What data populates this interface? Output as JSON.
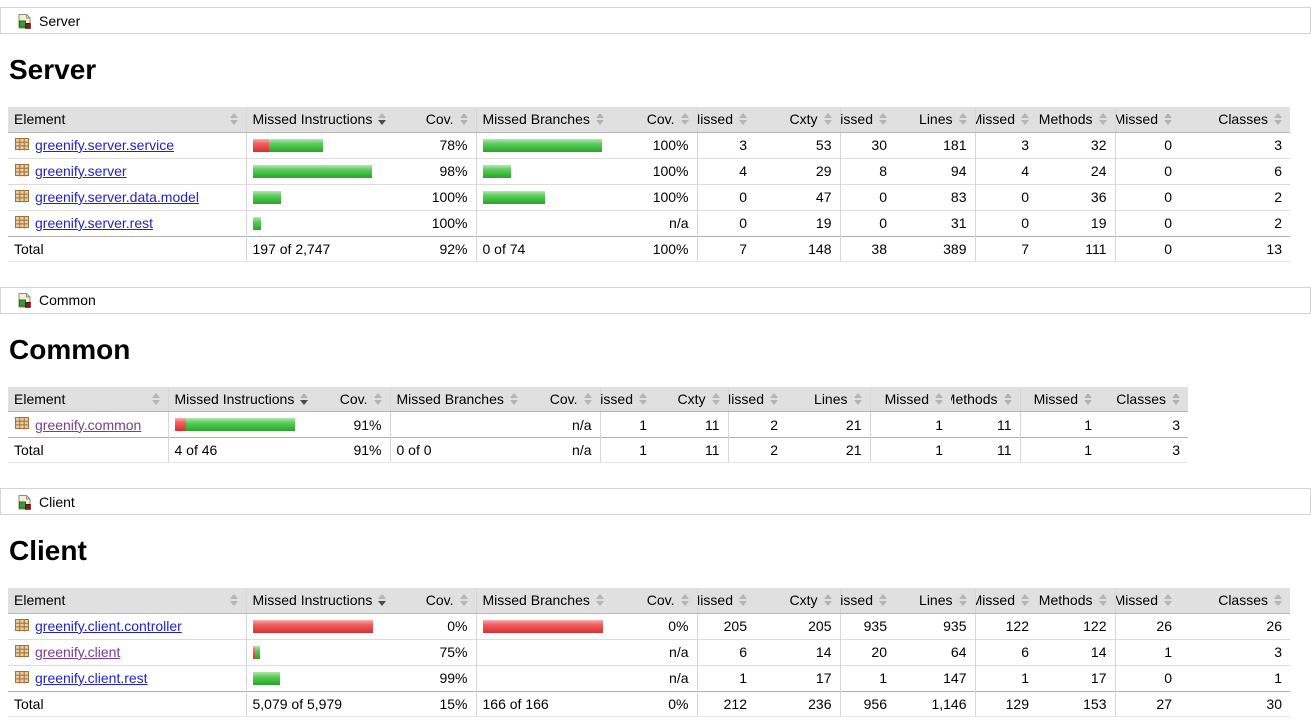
{
  "columns": [
    "Element",
    "Missed Instructions",
    "Cov.",
    "Missed Branches",
    "Cov.",
    "Missed",
    "Cxty",
    "Missed",
    "Lines",
    "Missed",
    "Methods",
    "Missed",
    "Classes"
  ],
  "sort": {
    "column": "Missed Instructions",
    "column_index": 1,
    "direction": "desc"
  },
  "colors": {
    "bar_green": "#3fbf3f",
    "bar_red": "#ea4848",
    "link": "#2222cc",
    "visited_link": "#7a3b96",
    "header_bg": "#e0e0e0"
  },
  "icons": {
    "breadcrumb": "report-group-icon",
    "element": "package-icon",
    "sort": "sort-arrows-icon"
  },
  "sections": [
    {
      "id": "server",
      "breadcrumb": "Server",
      "title": "Server",
      "rows": [
        {
          "element": "greenify.server.service",
          "visited": false,
          "instr_bar": {
            "red": 16,
            "green": 54
          },
          "cov_instr": "78%",
          "branch_bar": {
            "red": 0,
            "green": 119
          },
          "cov_branch": "100%",
          "missed_cxty": "3",
          "cxty": "53",
          "missed_lines": "30",
          "lines": "181",
          "missed_methods": "3",
          "methods": "32",
          "missed_classes": "0",
          "classes": "3"
        },
        {
          "element": "greenify.server",
          "visited": false,
          "instr_bar": {
            "red": 0,
            "green": 119
          },
          "cov_instr": "98%",
          "branch_bar": {
            "red": 0,
            "green": 28
          },
          "cov_branch": "100%",
          "missed_cxty": "4",
          "cxty": "29",
          "missed_lines": "8",
          "lines": "94",
          "missed_methods": "4",
          "methods": "24",
          "missed_classes": "0",
          "classes": "6"
        },
        {
          "element": "greenify.server.data.model",
          "visited": false,
          "instr_bar": {
            "red": 0,
            "green": 28
          },
          "cov_instr": "100%",
          "branch_bar": {
            "red": 0,
            "green": 62
          },
          "cov_branch": "100%",
          "missed_cxty": "0",
          "cxty": "47",
          "missed_lines": "0",
          "lines": "83",
          "missed_methods": "0",
          "methods": "36",
          "missed_classes": "0",
          "classes": "2"
        },
        {
          "element": "greenify.server.rest",
          "visited": false,
          "instr_bar": {
            "red": 0,
            "green": 8
          },
          "cov_instr": "100%",
          "branch_bar": {
            "red": 0,
            "green": 0
          },
          "cov_branch": "n/a",
          "missed_cxty": "0",
          "cxty": "19",
          "missed_lines": "0",
          "lines": "31",
          "missed_methods": "0",
          "methods": "19",
          "missed_classes": "0",
          "classes": "2"
        }
      ],
      "total": {
        "label": "Total",
        "instr": "197 of 2,747",
        "cov_instr": "92%",
        "branch": "0 of 74",
        "cov_branch": "100%",
        "missed_cxty": "7",
        "cxty": "148",
        "missed_lines": "38",
        "lines": "389",
        "missed_methods": "7",
        "methods": "111",
        "missed_classes": "0",
        "classes": "13"
      }
    },
    {
      "id": "common",
      "breadcrumb": "Common",
      "title": "Common",
      "rows": [
        {
          "element": "greenify.common",
          "visited": true,
          "instr_bar": {
            "red": 11,
            "green": 109
          },
          "cov_instr": "91%",
          "branch_bar": {
            "red": 0,
            "green": 0
          },
          "cov_branch": "n/a",
          "missed_cxty": "1",
          "cxty": "11",
          "missed_lines": "2",
          "lines": "21",
          "missed_methods": "1",
          "methods": "11",
          "missed_classes": "1",
          "classes": "3"
        }
      ],
      "total": {
        "label": "Total",
        "instr": "4 of 46",
        "cov_instr": "91%",
        "branch": "0 of 0",
        "cov_branch": "n/a",
        "missed_cxty": "1",
        "cxty": "11",
        "missed_lines": "2",
        "lines": "21",
        "missed_methods": "1",
        "methods": "11",
        "missed_classes": "1",
        "classes": "3"
      }
    },
    {
      "id": "client",
      "breadcrumb": "Client",
      "title": "Client",
      "rows": [
        {
          "element": "greenify.client.controller",
          "visited": false,
          "instr_bar": {
            "red": 120,
            "green": 0
          },
          "cov_instr": "0%",
          "branch_bar": {
            "red": 120,
            "green": 0
          },
          "cov_branch": "0%",
          "missed_cxty": "205",
          "cxty": "205",
          "missed_lines": "935",
          "lines": "935",
          "missed_methods": "122",
          "methods": "122",
          "missed_classes": "26",
          "classes": "26"
        },
        {
          "element": "greenify.client",
          "visited": true,
          "instr_bar": {
            "red": 2,
            "green": 5
          },
          "cov_instr": "75%",
          "branch_bar": {
            "red": 0,
            "green": 0
          },
          "cov_branch": "n/a",
          "missed_cxty": "6",
          "cxty": "14",
          "missed_lines": "20",
          "lines": "64",
          "missed_methods": "6",
          "methods": "14",
          "missed_classes": "1",
          "classes": "3"
        },
        {
          "element": "greenify.client.rest",
          "visited": false,
          "instr_bar": {
            "red": 0,
            "green": 27
          },
          "cov_instr": "99%",
          "branch_bar": {
            "red": 0,
            "green": 0
          },
          "cov_branch": "n/a",
          "missed_cxty": "1",
          "cxty": "17",
          "missed_lines": "1",
          "lines": "147",
          "missed_methods": "1",
          "methods": "17",
          "missed_classes": "0",
          "classes": "1"
        }
      ],
      "total": {
        "label": "Total",
        "instr": "5,079 of 5,979",
        "cov_instr": "15%",
        "branch": "166 of 166",
        "cov_branch": "0%",
        "missed_cxty": "212",
        "cxty": "236",
        "missed_lines": "956",
        "lines": "1,146",
        "missed_methods": "129",
        "methods": "153",
        "missed_classes": "27",
        "classes": "30"
      }
    }
  ]
}
